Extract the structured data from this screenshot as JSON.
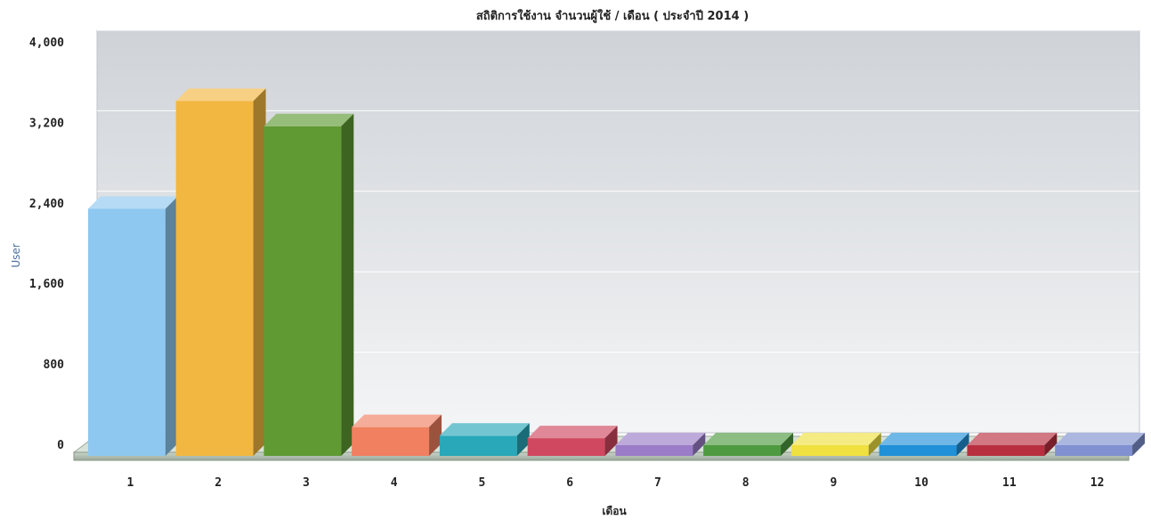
{
  "chart_data": {
    "type": "bar",
    "title": "สถิติการใช้งาน จำนวนผู้ใช้ / เดือน ( ประจำปี 2014 )",
    "xlabel": "เดือน",
    "ylabel": "User",
    "categories": [
      "1",
      "2",
      "3",
      "4",
      "5",
      "6",
      "7",
      "8",
      "9",
      "10",
      "11",
      "12"
    ],
    "values": [
      2350,
      3420,
      3170,
      180,
      95,
      70,
      0,
      0,
      0,
      0,
      0,
      0
    ],
    "ylim": [
      0,
      4000
    ],
    "yticks": [
      "0",
      "800",
      "1,600",
      "2,400",
      "3,200",
      "4,000"
    ],
    "ytick_values": [
      0,
      800,
      1600,
      2400,
      3200,
      4000
    ],
    "grid": true,
    "legend": "none",
    "style": "3d-bar",
    "bar_colors": [
      "#8ec8f0",
      "#f2b740",
      "#5f9a32",
      "#f08060",
      "#28a8b8",
      "#d04860",
      "#9a7cc8",
      "#4e9a40",
      "#f0e040",
      "#2090d8",
      "#b83040",
      "#8090d0"
    ]
  }
}
